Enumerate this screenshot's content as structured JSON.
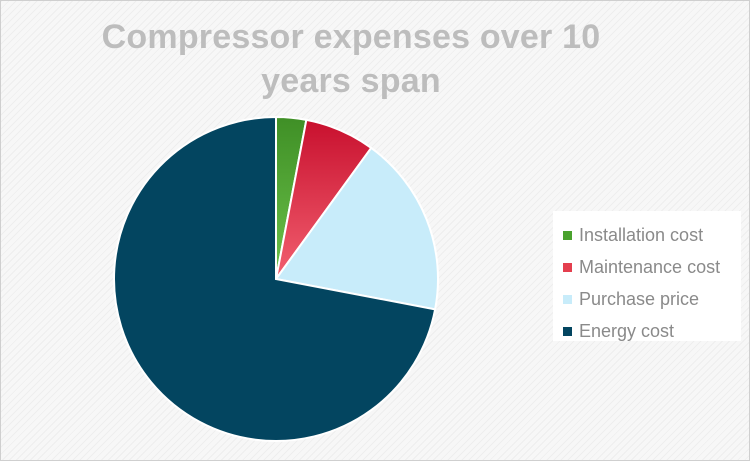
{
  "chart_data": {
    "type": "pie",
    "title": "Compressor expenses over 10 years span",
    "categories": [
      "Installation cost",
      "Maintenance cost",
      "Purchase price",
      "Energy cost"
    ],
    "values": [
      3,
      7,
      18,
      72
    ],
    "unit": "%",
    "colors": [
      "#4aa22e",
      "#e43f4e",
      "#c8ecfa",
      "#034560"
    ],
    "legend_position": "right",
    "start_angle_deg": 0,
    "direction": "clockwise"
  }
}
